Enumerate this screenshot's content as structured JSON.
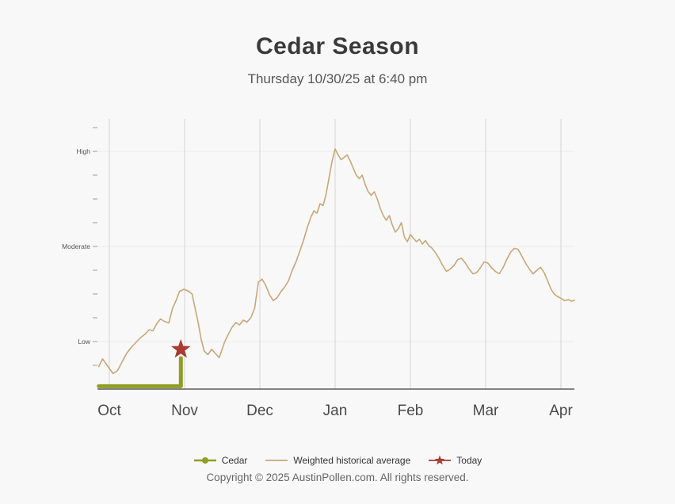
{
  "header": {
    "title": "Cedar Season",
    "subtitle": "Thursday 10/30/25 at 6:40 pm"
  },
  "chart_data": {
    "type": "line",
    "title": "Cedar Season",
    "subtitle": "Thursday 10/30/25 at 6:40 pm",
    "x_tick_labels": [
      "Oct",
      "Nov",
      "Dec",
      "Jan",
      "Feb",
      "Mar",
      "Apr"
    ],
    "x_note": "x in months relative to Oct gridline; data extends slightly before Oct and after Apr",
    "y_axis": {
      "tick_values": [
        1,
        2,
        3,
        4,
        5,
        6,
        7,
        8,
        9,
        10,
        11
      ],
      "labeled_ticks": [
        {
          "value": 2,
          "label": "Low"
        },
        {
          "value": 6,
          "label": "Moderate"
        },
        {
          "value": 10,
          "label": "High"
        }
      ],
      "ylim": [
        0,
        11.4
      ],
      "grid": "vertical month gridlines, faint horizontal lines at labeled levels"
    },
    "series": [
      {
        "name": "Weighted historical average",
        "color": "#c9a677",
        "width": 1.6,
        "points": [
          [
            -0.14,
            0.95
          ],
          [
            -0.09,
            1.27
          ],
          [
            -0.03,
            1.0
          ],
          [
            0.05,
            0.65
          ],
          [
            0.11,
            0.78
          ],
          [
            0.17,
            1.15
          ],
          [
            0.23,
            1.5
          ],
          [
            0.29,
            1.75
          ],
          [
            0.35,
            1.95
          ],
          [
            0.41,
            2.15
          ],
          [
            0.47,
            2.3
          ],
          [
            0.53,
            2.5
          ],
          [
            0.58,
            2.45
          ],
          [
            0.63,
            2.75
          ],
          [
            0.68,
            2.95
          ],
          [
            0.73,
            2.85
          ],
          [
            0.79,
            2.78
          ],
          [
            0.84,
            3.4
          ],
          [
            0.89,
            3.75
          ],
          [
            0.93,
            4.1
          ],
          [
            0.99,
            4.2
          ],
          [
            1.05,
            4.12
          ],
          [
            1.1,
            4.0
          ],
          [
            1.14,
            3.4
          ],
          [
            1.18,
            2.8
          ],
          [
            1.22,
            2.1
          ],
          [
            1.26,
            1.6
          ],
          [
            1.31,
            1.45
          ],
          [
            1.36,
            1.67
          ],
          [
            1.41,
            1.5
          ],
          [
            1.46,
            1.32
          ],
          [
            1.53,
            1.97
          ],
          [
            1.58,
            2.3
          ],
          [
            1.63,
            2.6
          ],
          [
            1.68,
            2.8
          ],
          [
            1.73,
            2.7
          ],
          [
            1.78,
            2.9
          ],
          [
            1.83,
            2.82
          ],
          [
            1.88,
            3.0
          ],
          [
            1.93,
            3.4
          ],
          [
            1.98,
            4.5
          ],
          [
            2.03,
            4.62
          ],
          [
            2.08,
            4.35
          ],
          [
            2.13,
            3.95
          ],
          [
            2.18,
            3.72
          ],
          [
            2.23,
            3.85
          ],
          [
            2.28,
            4.1
          ],
          [
            2.33,
            4.3
          ],
          [
            2.38,
            4.55
          ],
          [
            2.43,
            5.0
          ],
          [
            2.48,
            5.35
          ],
          [
            2.53,
            5.8
          ],
          [
            2.58,
            6.25
          ],
          [
            2.63,
            6.8
          ],
          [
            2.68,
            7.25
          ],
          [
            2.72,
            7.5
          ],
          [
            2.76,
            7.4
          ],
          [
            2.8,
            7.8
          ],
          [
            2.84,
            7.72
          ],
          [
            2.88,
            8.2
          ],
          [
            2.92,
            8.9
          ],
          [
            2.96,
            9.6
          ],
          [
            3.0,
            10.1
          ],
          [
            3.04,
            9.85
          ],
          [
            3.08,
            9.65
          ],
          [
            3.12,
            9.75
          ],
          [
            3.16,
            9.85
          ],
          [
            3.2,
            9.6
          ],
          [
            3.24,
            9.3
          ],
          [
            3.28,
            9.0
          ],
          [
            3.32,
            8.85
          ],
          [
            3.36,
            9.0
          ],
          [
            3.4,
            8.6
          ],
          [
            3.44,
            8.3
          ],
          [
            3.48,
            8.15
          ],
          [
            3.52,
            8.3
          ],
          [
            3.56,
            8.0
          ],
          [
            3.6,
            7.6
          ],
          [
            3.64,
            7.3
          ],
          [
            3.68,
            7.1
          ],
          [
            3.72,
            7.3
          ],
          [
            3.76,
            6.9
          ],
          [
            3.8,
            6.6
          ],
          [
            3.84,
            6.75
          ],
          [
            3.88,
            7.0
          ],
          [
            3.92,
            6.4
          ],
          [
            3.96,
            6.2
          ],
          [
            4.0,
            6.5
          ],
          [
            4.04,
            6.35
          ],
          [
            4.08,
            6.2
          ],
          [
            4.12,
            6.3
          ],
          [
            4.16,
            6.1
          ],
          [
            4.2,
            6.25
          ],
          [
            4.24,
            6.05
          ],
          [
            4.28,
            5.95
          ],
          [
            4.33,
            5.75
          ],
          [
            4.38,
            5.5
          ],
          [
            4.43,
            5.2
          ],
          [
            4.48,
            4.95
          ],
          [
            4.53,
            5.05
          ],
          [
            4.58,
            5.2
          ],
          [
            4.63,
            5.45
          ],
          [
            4.68,
            5.5
          ],
          [
            4.73,
            5.3
          ],
          [
            4.78,
            5.05
          ],
          [
            4.83,
            4.85
          ],
          [
            4.88,
            4.9
          ],
          [
            4.93,
            5.1
          ],
          [
            4.98,
            5.35
          ],
          [
            5.03,
            5.3
          ],
          [
            5.08,
            5.1
          ],
          [
            5.13,
            4.95
          ],
          [
            5.18,
            4.85
          ],
          [
            5.23,
            5.1
          ],
          [
            5.28,
            5.45
          ],
          [
            5.33,
            5.75
          ],
          [
            5.38,
            5.92
          ],
          [
            5.43,
            5.88
          ],
          [
            5.48,
            5.6
          ],
          [
            5.53,
            5.3
          ],
          [
            5.58,
            5.05
          ],
          [
            5.63,
            4.85
          ],
          [
            5.68,
            5.0
          ],
          [
            5.73,
            5.12
          ],
          [
            5.78,
            4.88
          ],
          [
            5.83,
            4.5
          ],
          [
            5.87,
            4.2
          ],
          [
            5.91,
            4.0
          ],
          [
            5.95,
            3.9
          ],
          [
            6.0,
            3.82
          ],
          [
            6.05,
            3.72
          ],
          [
            6.1,
            3.76
          ],
          [
            6.14,
            3.7
          ],
          [
            6.18,
            3.73
          ]
        ]
      },
      {
        "name": "Cedar",
        "color": "#8f9d24",
        "width": 5,
        "points": [
          [
            -0.14,
            0.12
          ],
          [
            0.95,
            0.12
          ],
          [
            0.95,
            1.3
          ]
        ]
      }
    ],
    "today_marker": {
      "name": "Today",
      "color": "#a83b32",
      "x": 0.95,
      "value": 1.67,
      "shape": "star"
    }
  },
  "legend": {
    "items": [
      {
        "label": "Cedar",
        "color": "#8f9d24",
        "marker": "circle"
      },
      {
        "label": "Weighted historical average",
        "color": "#c9a677",
        "marker": "line"
      },
      {
        "label": "Today",
        "color": "#a83b32",
        "marker": "star"
      }
    ]
  },
  "footer": {
    "copyright": "Copyright © 2025 AustinPollen.com.  All rights reserved."
  }
}
